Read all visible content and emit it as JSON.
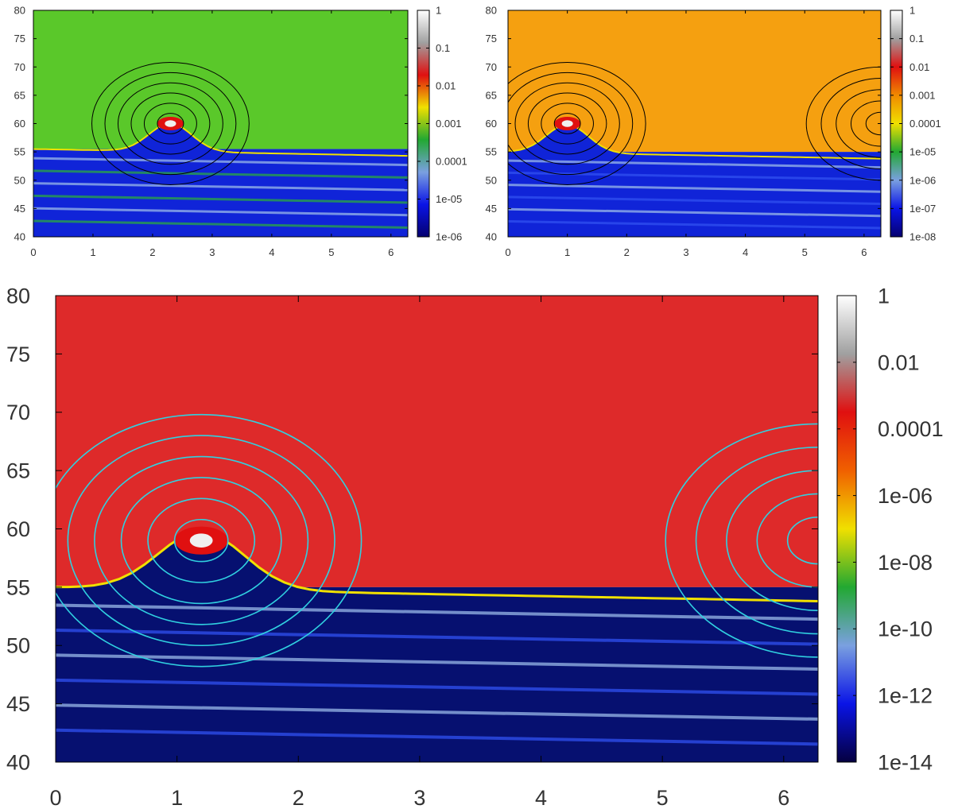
{
  "chart_data": [
    {
      "type": "heatmap",
      "title": "",
      "xlabel": "",
      "ylabel": "",
      "xlim": [
        0,
        6.283
      ],
      "ylim": [
        40,
        80
      ],
      "x_ticks": [
        "0",
        "1",
        "2",
        "3",
        "4",
        "5",
        "6"
      ],
      "y_ticks": [
        "40",
        "45",
        "50",
        "55",
        "60",
        "65",
        "70",
        "75",
        "80"
      ],
      "colorbar": {
        "scale": "log",
        "range": [
          1e-06,
          1
        ],
        "ticks": [
          "1e-06",
          "1e-05",
          "0.0001",
          "0.001",
          "0.01",
          "0.1",
          "1"
        ]
      },
      "colormap": [
        "#050070",
        "#0a14e6",
        "#7aa0e0",
        "#22a832",
        "#f0e000",
        "#e01010",
        "#a0a0a0",
        "#ffffff"
      ],
      "regions": [
        {
          "name": "upper",
          "y_range": [
            55.5,
            80
          ],
          "level": "1e-03 to 1e-04",
          "color": "#5ac82a"
        },
        {
          "name": "lower",
          "y_range": [
            40,
            55.5
          ],
          "level": "1e-05 to 1e-06",
          "color": "#1024d8"
        }
      ],
      "vortex_center": {
        "x": 2.3,
        "y": 60
      },
      "contour_color": "#000000"
    },
    {
      "type": "heatmap",
      "title": "",
      "xlabel": "",
      "ylabel": "",
      "xlim": [
        0,
        6.283
      ],
      "ylim": [
        40,
        80
      ],
      "x_ticks": [
        "0",
        "1",
        "2",
        "3",
        "4",
        "5",
        "6"
      ],
      "y_ticks": [
        "40",
        "45",
        "50",
        "55",
        "60",
        "65",
        "70",
        "75",
        "80"
      ],
      "colorbar": {
        "scale": "log",
        "range": [
          1e-08,
          1
        ],
        "ticks": [
          "1e-08",
          "1e-07",
          "1e-06",
          "1e-05",
          "0.0001",
          "0.001",
          "0.01",
          "0.1",
          "1"
        ]
      },
      "colormap": [
        "#050070",
        "#0a14e6",
        "#7aa0e0",
        "#22a832",
        "#f0e000",
        "#f08a00",
        "#e01010",
        "#a0a0a0",
        "#ffffff"
      ],
      "regions": [
        {
          "name": "upper",
          "y_range": [
            55,
            80
          ],
          "level": "1e-03 to 1e-04",
          "color": "#f5a010"
        },
        {
          "name": "lower",
          "y_range": [
            40,
            55
          ],
          "level": "1e-07 to 1e-08",
          "color": "#1024d8"
        }
      ],
      "vortex_center": {
        "x": 1.0,
        "y": 60
      },
      "contour_color": "#000000"
    },
    {
      "type": "heatmap",
      "title": "",
      "xlabel": "",
      "ylabel": "",
      "xlim": [
        0,
        6.283
      ],
      "ylim": [
        40,
        80
      ],
      "x_ticks": [
        "0",
        "1",
        "2",
        "3",
        "4",
        "5",
        "6"
      ],
      "y_ticks": [
        "40",
        "45",
        "50",
        "55",
        "60",
        "65",
        "70",
        "75",
        "80"
      ],
      "colorbar": {
        "scale": "log",
        "range": [
          1e-14,
          1
        ],
        "ticks": [
          "1e-14",
          "1e-12",
          "1e-10",
          "1e-08",
          "1e-06",
          "0.0001",
          "0.01",
          "1"
        ]
      },
      "colormap": [
        "#050040",
        "#0a14e6",
        "#7aa0e0",
        "#22a832",
        "#f0e000",
        "#f06000",
        "#e01010",
        "#a0a0a0",
        "#ffffff"
      ],
      "regions": [
        {
          "name": "upper",
          "y_range": [
            55,
            80
          ],
          "level": "1e-04 to 1e-05",
          "color": "#de2a2a"
        },
        {
          "name": "lower",
          "y_range": [
            40,
            55
          ],
          "level": "1e-13 to 1e-14",
          "color": "#061070"
        }
      ],
      "vortex_center": {
        "x": 1.2,
        "y": 59
      },
      "contour_color": "#30d0e0"
    }
  ]
}
